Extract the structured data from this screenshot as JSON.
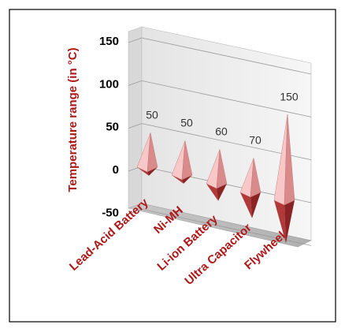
{
  "chart_data": {
    "type": "bar",
    "style": "3d-pyramid",
    "ylabel": "Temperature range (in °C)",
    "yticks": [
      -50,
      0,
      50,
      100,
      150
    ],
    "ylim": [
      -50,
      150
    ],
    "grid": true,
    "categories": [
      "Lead-Acid Battery",
      "Ni-MH",
      "Li-ion Battery",
      "Ultra Capacitor",
      "Flywheel"
    ],
    "values": [
      50,
      50,
      60,
      70,
      150
    ],
    "bar_top": [
      40,
      40,
      40,
      40,
      100
    ],
    "bar_bottom": [
      -10,
      -10,
      -20,
      -30,
      -50
    ],
    "data_labels": [
      "50",
      "50",
      "60",
      "70",
      "150"
    ],
    "colors": {
      "pyramid_light": "#f8c8c8",
      "pyramid_dark": "#b03a3a",
      "axis_text": "#000000",
      "category_text": "#b01818"
    }
  }
}
